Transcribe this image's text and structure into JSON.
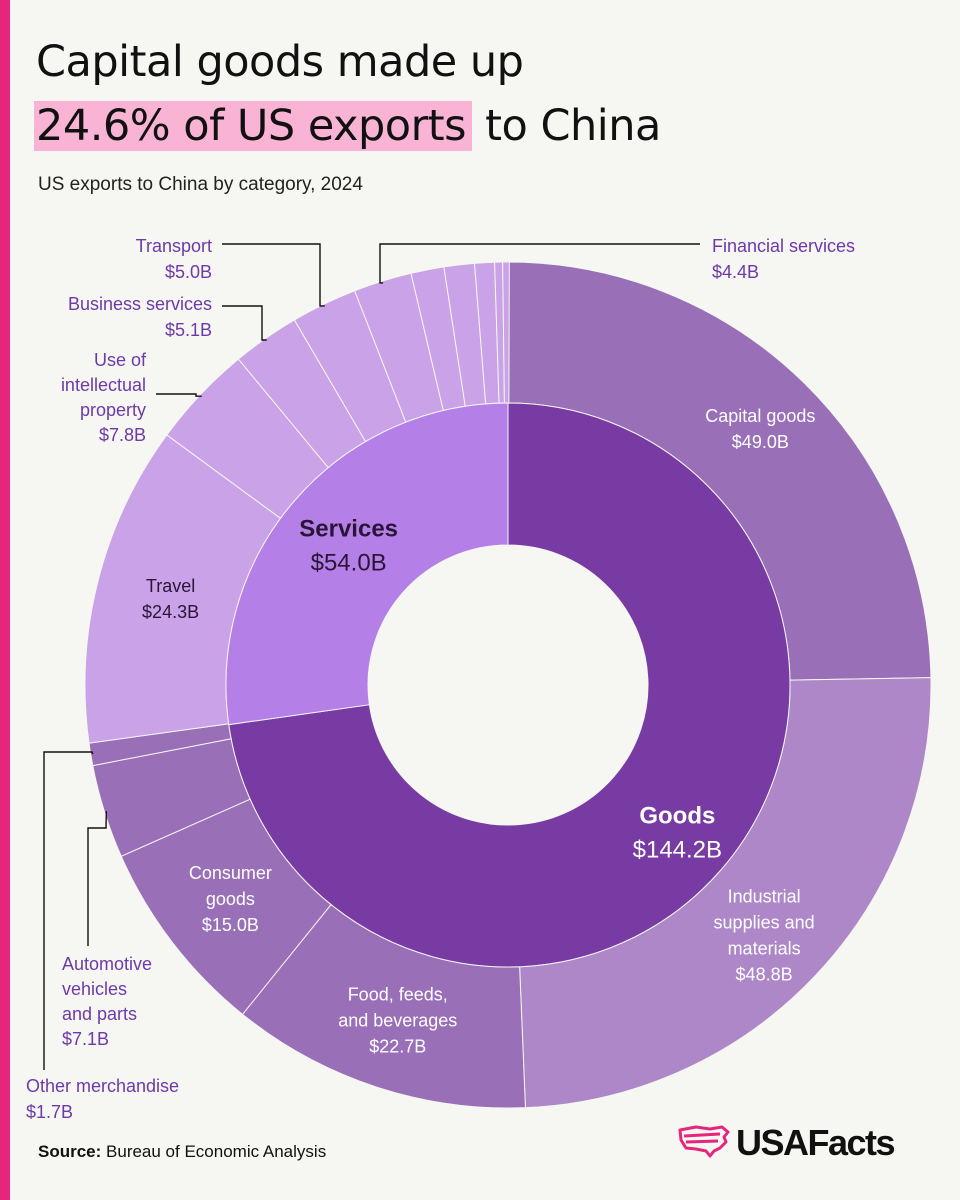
{
  "header": {
    "title_line1": "Capital goods made up",
    "title_highlight": "24.6% of US exports",
    "title_rest": " to China",
    "subtitle": "US exports to China by category, 2024"
  },
  "footer": {
    "source_label": "Source:",
    "source_text": " Bureau of Economic Analysis",
    "logo_text": "USAFacts"
  },
  "colors": {
    "accent_bar": "#e6267c",
    "highlight": "#f9b3d5",
    "goods_inner": "#783ba3",
    "services_inner": "#b47fe6",
    "goods_outer": "#996fb8",
    "goods_outer_alt": "#ad87c7",
    "services_outer": "#c9a2e8",
    "label_purple": "#6d3aa8"
  },
  "chart_data": {
    "type": "sunburst",
    "title": "Capital goods made up 24.6% of US exports to China",
    "subtitle": "US exports to China by category, 2024",
    "unit": "$B",
    "inner": [
      {
        "name": "Goods",
        "value": 144.2,
        "label": "$144.2B"
      },
      {
        "name": "Services",
        "value": 54.0,
        "label": "$54.0B"
      }
    ],
    "outer": [
      {
        "parent": "Goods",
        "name": "Capital goods",
        "value": 49.0,
        "label": "$49.0B"
      },
      {
        "parent": "Goods",
        "name": "Industrial supplies and materials",
        "value": 48.8,
        "label": "$48.8B"
      },
      {
        "parent": "Goods",
        "name": "Food, feeds, and beverages",
        "value": 22.7,
        "label": "$22.7B"
      },
      {
        "parent": "Goods",
        "name": "Consumer goods",
        "value": 15.0,
        "label": "$15.0B"
      },
      {
        "parent": "Goods",
        "name": "Automotive vehicles and parts",
        "value": 7.1,
        "label": "$7.1B"
      },
      {
        "parent": "Goods",
        "name": "Other merchandise",
        "value": 1.7,
        "label": "$1.7B"
      },
      {
        "parent": "Services",
        "name": "Travel",
        "value": 24.3,
        "label": "$24.3B"
      },
      {
        "parent": "Services",
        "name": "Use of intellectual property",
        "value": 7.8,
        "label": "$7.8B"
      },
      {
        "parent": "Services",
        "name": "Business services",
        "value": 5.1,
        "label": "$5.1B"
      },
      {
        "parent": "Services",
        "name": "Transport",
        "value": 5.0,
        "label": "$5.0B"
      },
      {
        "parent": "Services",
        "name": "Financial services",
        "value": 4.4,
        "label": "$4.4B"
      },
      {
        "parent": "Services",
        "name": "",
        "value": 2.5,
        "label": ""
      },
      {
        "parent": "Services",
        "name": "",
        "value": 2.3,
        "label": ""
      },
      {
        "parent": "Services",
        "name": "",
        "value": 1.5,
        "label": ""
      },
      {
        "parent": "Services",
        "name": "",
        "value": 0.6,
        "label": ""
      },
      {
        "parent": "Services",
        "name": "",
        "value": 0.5,
        "label": ""
      }
    ]
  }
}
